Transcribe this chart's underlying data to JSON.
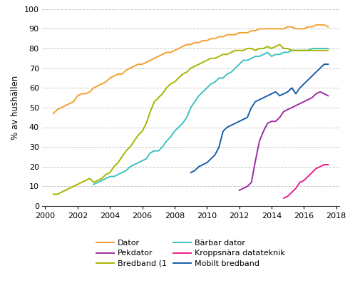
{
  "title": "",
  "ylabel": "% av hushällen",
  "xlim": [
    1999.8,
    2018.2
  ],
  "ylim": [
    0,
    100
  ],
  "yticks": [
    0,
    10,
    20,
    30,
    40,
    50,
    60,
    70,
    80,
    90,
    100
  ],
  "xticks": [
    2000,
    2002,
    2004,
    2006,
    2008,
    2010,
    2012,
    2014,
    2016,
    2018
  ],
  "background_color": "#ffffff",
  "grid_color": "#c8c8c8",
  "series": {
    "Dator": {
      "color": "#F5A030",
      "data": [
        [
          2000.5,
          47
        ],
        [
          2000.75,
          49
        ],
        [
          2001.0,
          50
        ],
        [
          2001.25,
          51
        ],
        [
          2001.5,
          52
        ],
        [
          2001.75,
          53
        ],
        [
          2002.0,
          56
        ],
        [
          2002.25,
          57
        ],
        [
          2002.5,
          57
        ],
        [
          2002.75,
          58
        ],
        [
          2003.0,
          60
        ],
        [
          2003.25,
          61
        ],
        [
          2003.5,
          62
        ],
        [
          2003.75,
          63
        ],
        [
          2004.0,
          65
        ],
        [
          2004.25,
          66
        ],
        [
          2004.5,
          67
        ],
        [
          2004.75,
          67
        ],
        [
          2005.0,
          69
        ],
        [
          2005.25,
          70
        ],
        [
          2005.5,
          71
        ],
        [
          2005.75,
          72
        ],
        [
          2006.0,
          72
        ],
        [
          2006.25,
          73
        ],
        [
          2006.5,
          74
        ],
        [
          2006.75,
          75
        ],
        [
          2007.0,
          76
        ],
        [
          2007.25,
          77
        ],
        [
          2007.5,
          78
        ],
        [
          2007.75,
          78
        ],
        [
          2008.0,
          79
        ],
        [
          2008.25,
          80
        ],
        [
          2008.5,
          81
        ],
        [
          2008.75,
          82
        ],
        [
          2009.0,
          82
        ],
        [
          2009.25,
          83
        ],
        [
          2009.5,
          83
        ],
        [
          2009.75,
          84
        ],
        [
          2010.0,
          84
        ],
        [
          2010.25,
          85
        ],
        [
          2010.5,
          85
        ],
        [
          2010.75,
          86
        ],
        [
          2011.0,
          86
        ],
        [
          2011.25,
          87
        ],
        [
          2011.5,
          87
        ],
        [
          2011.75,
          87
        ],
        [
          2012.0,
          88
        ],
        [
          2012.25,
          88
        ],
        [
          2012.5,
          88
        ],
        [
          2012.75,
          89
        ],
        [
          2013.0,
          89
        ],
        [
          2013.25,
          90
        ],
        [
          2013.5,
          90
        ],
        [
          2013.75,
          90
        ],
        [
          2014.0,
          90
        ],
        [
          2014.25,
          90
        ],
        [
          2014.5,
          90
        ],
        [
          2014.75,
          90
        ],
        [
          2015.0,
          91
        ],
        [
          2015.25,
          91
        ],
        [
          2015.5,
          90
        ],
        [
          2015.75,
          90
        ],
        [
          2016.0,
          90
        ],
        [
          2016.25,
          91
        ],
        [
          2016.5,
          91
        ],
        [
          2016.75,
          92
        ],
        [
          2017.0,
          92
        ],
        [
          2017.25,
          92
        ],
        [
          2017.5,
          91
        ]
      ]
    },
    "Bärbar dator": {
      "color": "#3EC1C1",
      "data": [
        [
          2003.0,
          11
        ],
        [
          2003.25,
          12
        ],
        [
          2003.5,
          13
        ],
        [
          2003.75,
          14
        ],
        [
          2004.0,
          15
        ],
        [
          2004.25,
          15
        ],
        [
          2004.5,
          16
        ],
        [
          2004.75,
          17
        ],
        [
          2005.0,
          18
        ],
        [
          2005.25,
          20
        ],
        [
          2005.5,
          21
        ],
        [
          2005.75,
          22
        ],
        [
          2006.0,
          23
        ],
        [
          2006.25,
          24
        ],
        [
          2006.5,
          27
        ],
        [
          2006.75,
          28
        ],
        [
          2007.0,
          28
        ],
        [
          2007.25,
          30
        ],
        [
          2007.5,
          33
        ],
        [
          2007.75,
          35
        ],
        [
          2008.0,
          38
        ],
        [
          2008.25,
          40
        ],
        [
          2008.5,
          42
        ],
        [
          2008.75,
          45
        ],
        [
          2009.0,
          50
        ],
        [
          2009.25,
          53
        ],
        [
          2009.5,
          56
        ],
        [
          2009.75,
          58
        ],
        [
          2010.0,
          60
        ],
        [
          2010.25,
          62
        ],
        [
          2010.5,
          63
        ],
        [
          2010.75,
          65
        ],
        [
          2011.0,
          65
        ],
        [
          2011.25,
          67
        ],
        [
          2011.5,
          68
        ],
        [
          2011.75,
          70
        ],
        [
          2012.0,
          72
        ],
        [
          2012.25,
          74
        ],
        [
          2012.5,
          74
        ],
        [
          2012.75,
          75
        ],
        [
          2013.0,
          76
        ],
        [
          2013.25,
          76
        ],
        [
          2013.5,
          77
        ],
        [
          2013.75,
          78
        ],
        [
          2014.0,
          76
        ],
        [
          2014.25,
          77
        ],
        [
          2014.5,
          77
        ],
        [
          2014.75,
          78
        ],
        [
          2015.0,
          78
        ],
        [
          2015.25,
          79
        ],
        [
          2015.5,
          79
        ],
        [
          2015.75,
          79
        ],
        [
          2016.0,
          79
        ],
        [
          2016.25,
          79
        ],
        [
          2016.5,
          80
        ],
        [
          2016.75,
          80
        ],
        [
          2017.0,
          80
        ],
        [
          2017.25,
          80
        ],
        [
          2017.5,
          80
        ]
      ]
    },
    "Pekdator": {
      "color": "#9B2DA0",
      "data": [
        [
          2012.0,
          8
        ],
        [
          2012.25,
          9
        ],
        [
          2012.5,
          10
        ],
        [
          2012.75,
          12
        ],
        [
          2013.0,
          23
        ],
        [
          2013.25,
          33
        ],
        [
          2013.5,
          38
        ],
        [
          2013.75,
          42
        ],
        [
          2014.0,
          43
        ],
        [
          2014.25,
          43
        ],
        [
          2014.5,
          45
        ],
        [
          2014.75,
          48
        ],
        [
          2015.0,
          49
        ],
        [
          2015.25,
          50
        ],
        [
          2015.5,
          51
        ],
        [
          2015.75,
          52
        ],
        [
          2016.0,
          53
        ],
        [
          2016.25,
          54
        ],
        [
          2016.5,
          55
        ],
        [
          2016.75,
          57
        ],
        [
          2017.0,
          58
        ],
        [
          2017.25,
          57
        ],
        [
          2017.5,
          56
        ]
      ]
    },
    "Kroppsnära datateknik": {
      "color": "#E91E8C",
      "data": [
        [
          2014.75,
          4
        ],
        [
          2015.0,
          5
        ],
        [
          2015.25,
          7
        ],
        [
          2015.5,
          9
        ],
        [
          2015.75,
          12
        ],
        [
          2016.0,
          13
        ],
        [
          2016.25,
          15
        ],
        [
          2016.5,
          17
        ],
        [
          2016.75,
          19
        ],
        [
          2017.0,
          20
        ],
        [
          2017.25,
          21
        ],
        [
          2017.5,
          21
        ]
      ]
    },
    "Bredband (1": {
      "color": "#A8B400",
      "data": [
        [
          2000.5,
          6
        ],
        [
          2000.75,
          6
        ],
        [
          2001.0,
          7
        ],
        [
          2001.25,
          8
        ],
        [
          2001.5,
          9
        ],
        [
          2001.75,
          10
        ],
        [
          2002.0,
          11
        ],
        [
          2002.25,
          12
        ],
        [
          2002.5,
          13
        ],
        [
          2002.75,
          14
        ],
        [
          2003.0,
          12
        ],
        [
          2003.25,
          13
        ],
        [
          2003.5,
          14
        ],
        [
          2003.75,
          16
        ],
        [
          2004.0,
          17
        ],
        [
          2004.25,
          20
        ],
        [
          2004.5,
          22
        ],
        [
          2004.75,
          25
        ],
        [
          2005.0,
          28
        ],
        [
          2005.25,
          30
        ],
        [
          2005.5,
          33
        ],
        [
          2005.75,
          36
        ],
        [
          2006.0,
          38
        ],
        [
          2006.25,
          42
        ],
        [
          2006.5,
          48
        ],
        [
          2006.75,
          53
        ],
        [
          2007.0,
          55
        ],
        [
          2007.25,
          57
        ],
        [
          2007.5,
          60
        ],
        [
          2007.75,
          62
        ],
        [
          2008.0,
          63
        ],
        [
          2008.25,
          65
        ],
        [
          2008.5,
          67
        ],
        [
          2008.75,
          68
        ],
        [
          2009.0,
          70
        ],
        [
          2009.25,
          71
        ],
        [
          2009.5,
          72
        ],
        [
          2009.75,
          73
        ],
        [
          2010.0,
          74
        ],
        [
          2010.25,
          75
        ],
        [
          2010.5,
          75
        ],
        [
          2010.75,
          76
        ],
        [
          2011.0,
          77
        ],
        [
          2011.25,
          77
        ],
        [
          2011.5,
          78
        ],
        [
          2011.75,
          79
        ],
        [
          2012.0,
          79
        ],
        [
          2012.25,
          79
        ],
        [
          2012.5,
          80
        ],
        [
          2012.75,
          80
        ],
        [
          2013.0,
          79
        ],
        [
          2013.25,
          80
        ],
        [
          2013.5,
          80
        ],
        [
          2013.75,
          81
        ],
        [
          2014.0,
          80
        ],
        [
          2014.25,
          81
        ],
        [
          2014.5,
          82
        ],
        [
          2014.75,
          80
        ],
        [
          2015.0,
          80
        ],
        [
          2015.25,
          79
        ],
        [
          2015.5,
          79
        ],
        [
          2015.75,
          79
        ],
        [
          2016.0,
          79
        ],
        [
          2016.25,
          79
        ],
        [
          2016.5,
          79
        ],
        [
          2016.75,
          79
        ],
        [
          2017.0,
          79
        ],
        [
          2017.25,
          79
        ],
        [
          2017.5,
          79
        ]
      ]
    },
    "Mobilt bredband": {
      "color": "#1A5EA8",
      "data": [
        [
          2009.0,
          17
        ],
        [
          2009.25,
          18
        ],
        [
          2009.5,
          20
        ],
        [
          2009.75,
          21
        ],
        [
          2010.0,
          22
        ],
        [
          2010.25,
          24
        ],
        [
          2010.5,
          26
        ],
        [
          2010.75,
          30
        ],
        [
          2011.0,
          38
        ],
        [
          2011.25,
          40
        ],
        [
          2011.5,
          41
        ],
        [
          2011.75,
          42
        ],
        [
          2012.0,
          43
        ],
        [
          2012.25,
          44
        ],
        [
          2012.5,
          45
        ],
        [
          2012.75,
          50
        ],
        [
          2013.0,
          53
        ],
        [
          2013.25,
          54
        ],
        [
          2013.5,
          55
        ],
        [
          2013.75,
          56
        ],
        [
          2014.0,
          57
        ],
        [
          2014.25,
          58
        ],
        [
          2014.5,
          56
        ],
        [
          2014.75,
          57
        ],
        [
          2015.0,
          58
        ],
        [
          2015.25,
          60
        ],
        [
          2015.5,
          57
        ],
        [
          2015.75,
          60
        ],
        [
          2016.0,
          62
        ],
        [
          2016.25,
          64
        ],
        [
          2016.5,
          66
        ],
        [
          2016.75,
          68
        ],
        [
          2017.0,
          70
        ],
        [
          2017.25,
          72
        ],
        [
          2017.5,
          72
        ]
      ]
    }
  },
  "legend_order": [
    "Dator",
    "Bärbar dator",
    "Pekdator",
    "Kroppsnära datateknik",
    "Bredband (1",
    "Mobilt bredband"
  ]
}
